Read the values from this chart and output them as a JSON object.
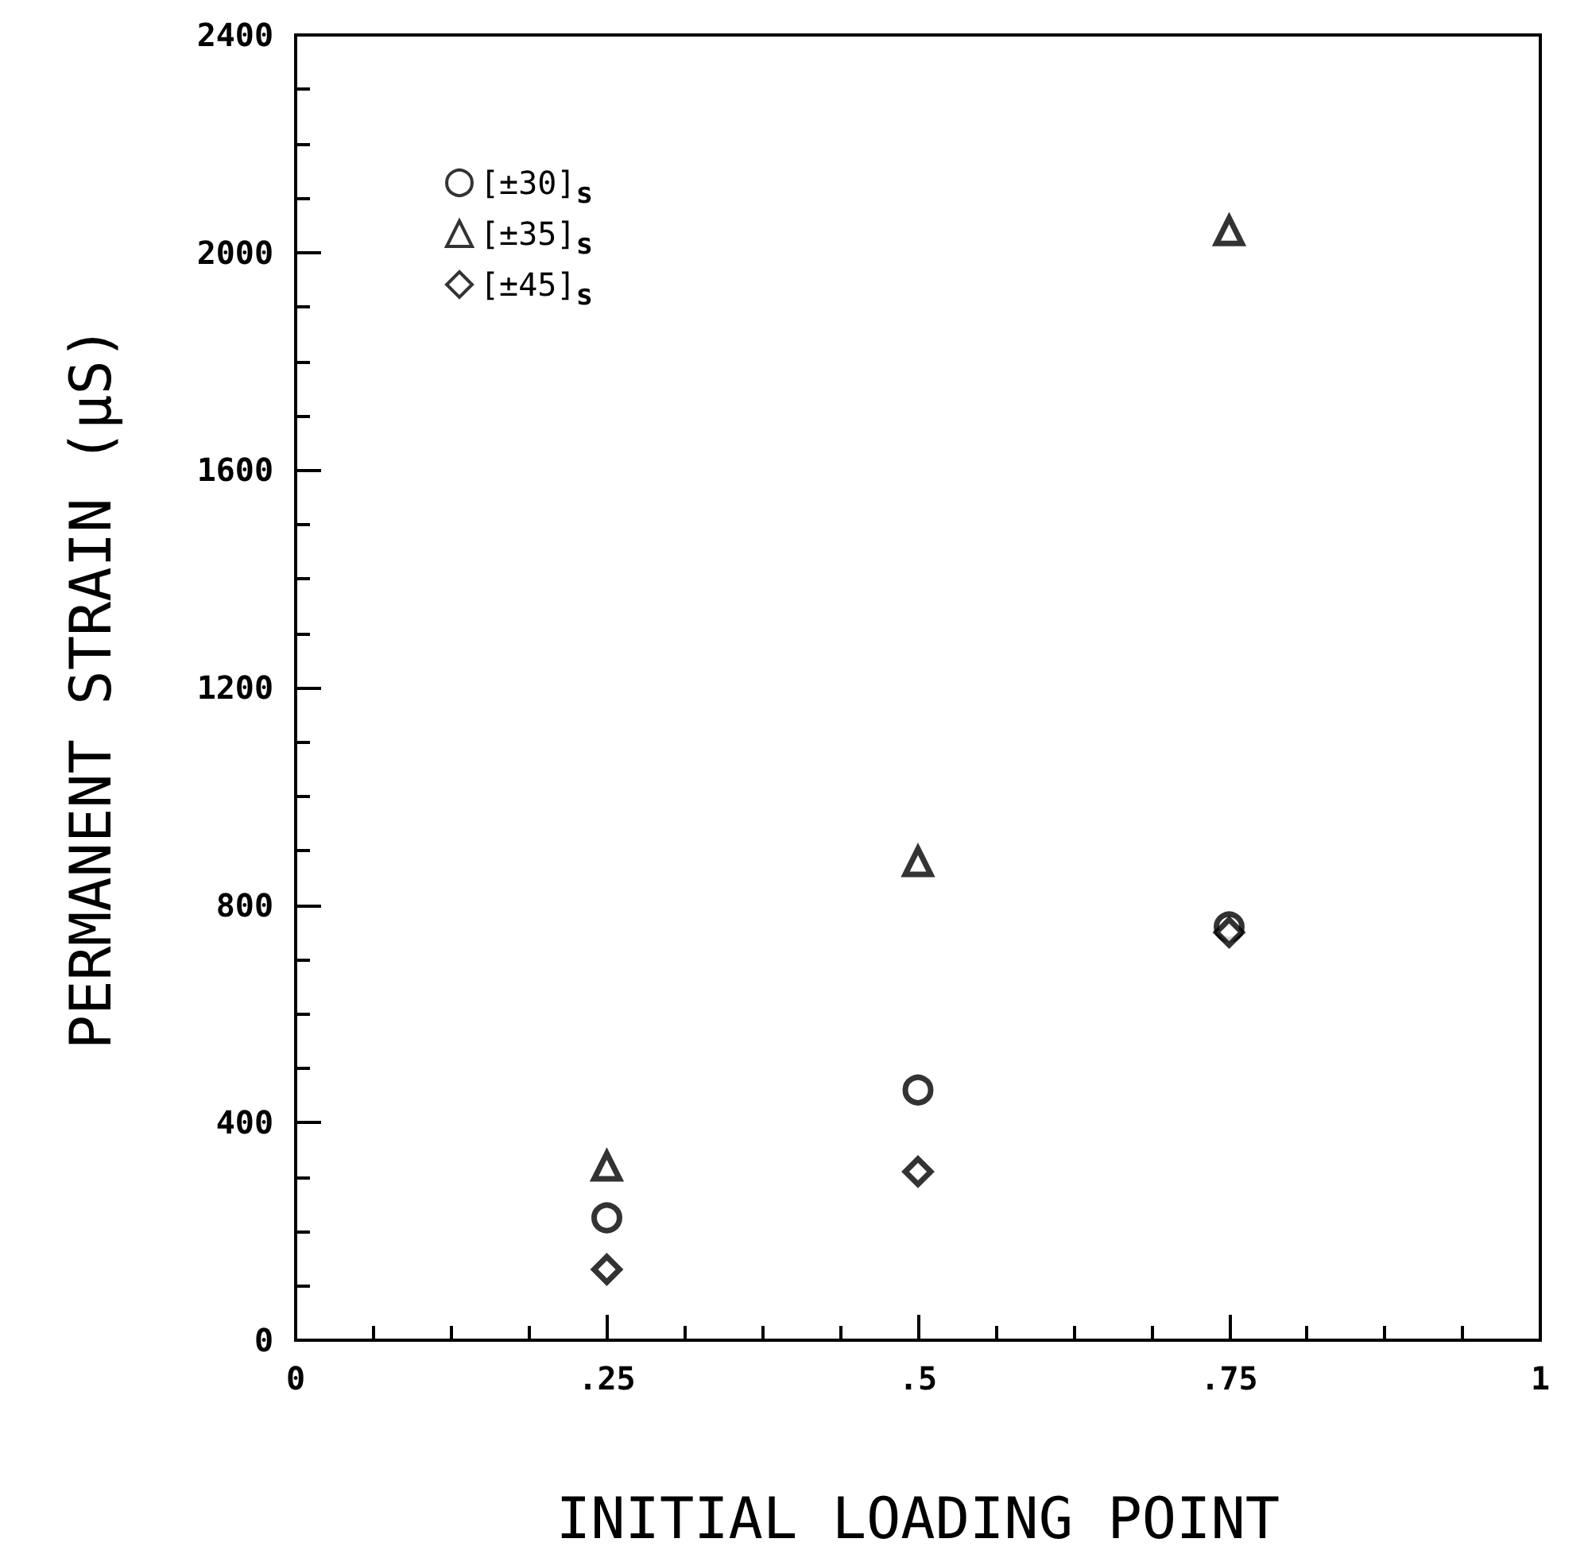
{
  "chart_data": {
    "type": "scatter",
    "xlabel": "INITIAL LOADING POINT",
    "ylabel": "PERMANENT STRAIN (μS)",
    "x": [
      0.25,
      0.5,
      0.75
    ],
    "series": [
      {
        "name": "[±30]$_{s}$",
        "color": "#000000",
        "marker": "circle",
        "values": [
          225,
          460,
          760
        ]
      },
      {
        "name": "[±35]$_{s}$",
        "color": "#000000",
        "marker": "triangle",
        "values": [
          320,
          880,
          2040
        ]
      },
      {
        "name": "[±45]$_{s}$",
        "color": "#000000",
        "marker": "diamond",
        "values": [
          130,
          310,
          750
        ]
      }
    ],
    "xlim": [
      0,
      1
    ],
    "xticks": [
      0,
      {
        "value": 0.25,
        "label": ".25"
      },
      {
        "value": 0.5,
        "label": ".5"
      },
      {
        "value": 0.75,
        "label": ".75"
      },
      1
    ],
    "ylim": [
      0,
      2400
    ],
    "yticks": [
      0,
      400,
      800,
      1200,
      1600,
      2000,
      2400
    ],
    "grid": false,
    "legend": "top left"
  }
}
